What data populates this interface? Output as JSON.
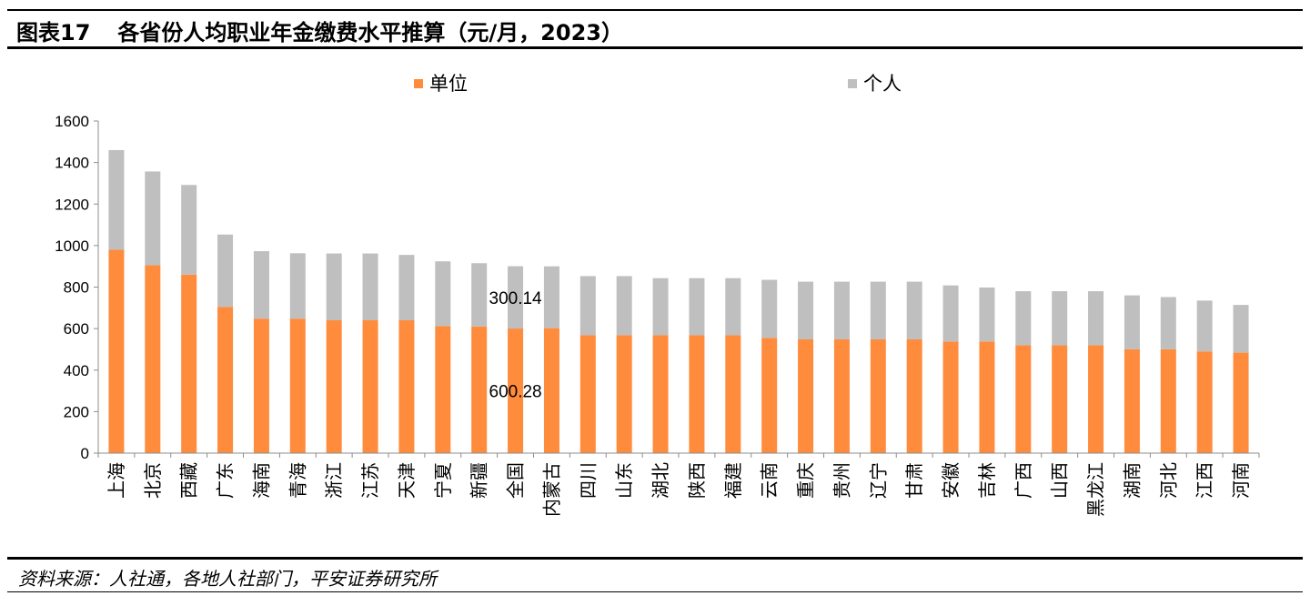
{
  "header": {
    "figure_no": "图表17",
    "title": "各省份人均职业年金缴费水平推算（元/月，2023）"
  },
  "footer": {
    "source": "资料来源：人社通，各地人社部门，平安证券研究所"
  },
  "colors": {
    "unit": "#FF8B3D",
    "individual": "#BFBFBF"
  },
  "chart_data": {
    "type": "bar",
    "stacked": true,
    "legend_position": "top",
    "grid": false,
    "ylim": [
      0,
      1600
    ],
    "yticks": [
      0,
      200,
      400,
      600,
      800,
      1000,
      1200,
      1400,
      1600
    ],
    "categories": [
      "上海",
      "北京",
      "西藏",
      "广东",
      "海南",
      "青海",
      "浙江",
      "江苏",
      "天津",
      "宁夏",
      "新疆",
      "全国",
      "内蒙古",
      "四川",
      "山东",
      "湖北",
      "陕西",
      "福建",
      "云南",
      "重庆",
      "贵州",
      "辽宁",
      "甘肃",
      "安徽",
      "吉林",
      "广西",
      "山西",
      "黑龙江",
      "湖南",
      "河北",
      "江西",
      "河南"
    ],
    "series": [
      {
        "name": "单位",
        "values": [
          980,
          905,
          860,
          705,
          648,
          648,
          640,
          640,
          640,
          612,
          610,
          600.28,
          602,
          568,
          568,
          568,
          568,
          568,
          555,
          548,
          548,
          548,
          548,
          538,
          538,
          520,
          520,
          520,
          500,
          500,
          490,
          484
        ]
      },
      {
        "name": "个人",
        "values": [
          480,
          452,
          432,
          348,
          325,
          315,
          322,
          322,
          315,
          312,
          305,
          300.14,
          298,
          285,
          285,
          275,
          275,
          275,
          280,
          278,
          278,
          278,
          278,
          270,
          260,
          260,
          260,
          260,
          260,
          252,
          245,
          230
        ]
      }
    ],
    "annotations": [
      {
        "text": "300.14",
        "category": "全国",
        "series": "个人"
      },
      {
        "text": "600.28",
        "category": "全国",
        "series": "单位"
      }
    ]
  }
}
